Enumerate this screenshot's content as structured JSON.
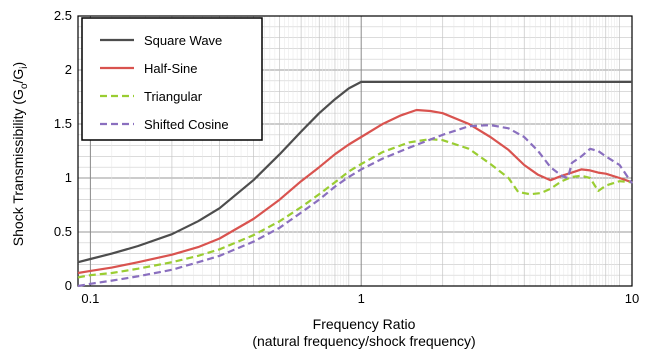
{
  "chart_data": {
    "type": "line",
    "xlabel_line1": "Frequency Ratio",
    "xlabel_line2": "(natural frequency/shock frequency)",
    "ylabel_main": "Shock Transmissibility (G",
    "ylabel_sub1": "o",
    "ylabel_mid": "/G",
    "ylabel_sub2": "i",
    "ylabel_end": ")",
    "x_scale": "log",
    "xlim": [
      0.09,
      10
    ],
    "ylim": [
      0,
      2.5
    ],
    "x_ticks": [
      {
        "value": 0.1,
        "label": "0.1"
      },
      {
        "value": 1,
        "label": "1"
      },
      {
        "value": 10,
        "label": "10"
      }
    ],
    "y_ticks": [
      {
        "value": 0,
        "label": "0"
      },
      {
        "value": 0.5,
        "label": "0.5"
      },
      {
        "value": 1,
        "label": "1"
      },
      {
        "value": 1.5,
        "label": "1.5"
      },
      {
        "value": 2,
        "label": "2"
      },
      {
        "value": 2.5,
        "label": "2.5"
      }
    ],
    "grid": true,
    "legend_position": "top-left",
    "series": [
      {
        "name": "Square Wave",
        "color": "#4d4d4d",
        "dash": "solid",
        "x": [
          0.09,
          0.1,
          0.12,
          0.15,
          0.2,
          0.25,
          0.3,
          0.4,
          0.5,
          0.6,
          0.7,
          0.8,
          0.9,
          1.0,
          1.5,
          2,
          3,
          5,
          7,
          10
        ],
        "y": [
          0.22,
          0.25,
          0.3,
          0.37,
          0.48,
          0.6,
          0.72,
          0.98,
          1.22,
          1.43,
          1.6,
          1.73,
          1.83,
          1.89,
          1.89,
          1.89,
          1.89,
          1.89,
          1.89,
          1.89
        ]
      },
      {
        "name": "Half-Sine",
        "color": "#d9534f",
        "dash": "solid",
        "x": [
          0.09,
          0.1,
          0.12,
          0.15,
          0.2,
          0.25,
          0.3,
          0.4,
          0.5,
          0.6,
          0.7,
          0.8,
          0.9,
          1.0,
          1.2,
          1.4,
          1.6,
          1.8,
          2.0,
          2.5,
          3,
          3.5,
          4,
          4.5,
          5,
          5.5,
          6,
          6.5,
          7,
          7.5,
          8,
          9,
          10
        ],
        "y": [
          0.12,
          0.14,
          0.17,
          0.22,
          0.29,
          0.36,
          0.44,
          0.62,
          0.8,
          0.97,
          1.1,
          1.22,
          1.31,
          1.38,
          1.5,
          1.58,
          1.63,
          1.62,
          1.6,
          1.5,
          1.38,
          1.26,
          1.12,
          1.03,
          0.98,
          1.02,
          1.05,
          1.08,
          1.07,
          1.05,
          1.04,
          1.0,
          0.96
        ]
      },
      {
        "name": "Triangular",
        "color": "#9acd32",
        "dash": "dashed",
        "x": [
          0.09,
          0.1,
          0.12,
          0.15,
          0.2,
          0.25,
          0.3,
          0.4,
          0.5,
          0.6,
          0.7,
          0.8,
          0.9,
          1.0,
          1.2,
          1.5,
          1.8,
          2.0,
          2.5,
          3,
          3.5,
          3.8,
          4.2,
          4.6,
          5,
          5.5,
          6,
          6.5,
          7,
          7.5,
          8,
          9,
          10
        ],
        "y": [
          0.08,
          0.1,
          0.12,
          0.16,
          0.22,
          0.28,
          0.34,
          0.47,
          0.6,
          0.73,
          0.85,
          0.96,
          1.06,
          1.13,
          1.24,
          1.33,
          1.36,
          1.35,
          1.27,
          1.13,
          1.0,
          0.87,
          0.85,
          0.86,
          0.9,
          0.97,
          1.01,
          1.02,
          1.0,
          0.88,
          0.93,
          0.97,
          0.96
        ]
      },
      {
        "name": "Shifted Cosine",
        "color": "#8a6fbf",
        "dash": "dashed",
        "x": [
          0.09,
          0.1,
          0.12,
          0.15,
          0.2,
          0.25,
          0.3,
          0.4,
          0.5,
          0.6,
          0.7,
          0.8,
          0.9,
          1.0,
          1.2,
          1.5,
          2.0,
          2.5,
          3.0,
          3.5,
          4.0,
          4.5,
          5.0,
          5.5,
          5.8,
          6.0,
          6.5,
          7.0,
          7.5,
          8.0,
          9.0,
          10.0
        ],
        "y": [
          0.0,
          0.02,
          0.05,
          0.09,
          0.15,
          0.22,
          0.28,
          0.41,
          0.54,
          0.68,
          0.8,
          0.92,
          1.01,
          1.08,
          1.18,
          1.28,
          1.4,
          1.48,
          1.49,
          1.46,
          1.38,
          1.25,
          1.1,
          1.02,
          1.0,
          1.14,
          1.2,
          1.27,
          1.25,
          1.2,
          1.12,
          0.95
        ]
      }
    ]
  }
}
